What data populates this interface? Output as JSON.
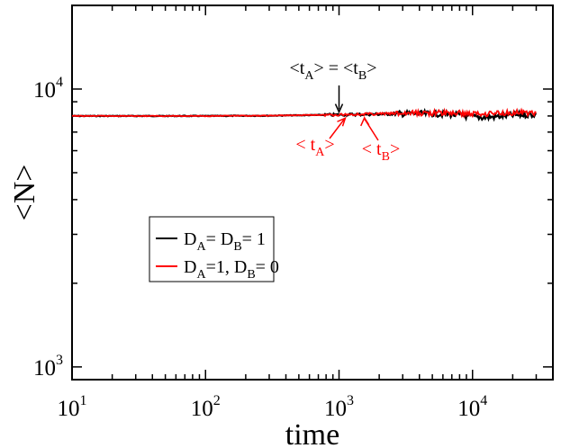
{
  "chart_data": {
    "type": "line",
    "xlabel": "time",
    "ylabel": "<N>",
    "x_scale": "log",
    "y_scale": "log",
    "xlim": [
      10,
      40000
    ],
    "ylim": [
      900,
      20000
    ],
    "x_ticks": [
      {
        "value": 10,
        "base": "10",
        "exp": "1"
      },
      {
        "value": 100,
        "base": "10",
        "exp": "2"
      },
      {
        "value": 1000,
        "base": "10",
        "exp": "3"
      },
      {
        "value": 10000,
        "base": "10",
        "exp": "4"
      }
    ],
    "y_ticks": [
      {
        "value": 1000,
        "base": "10",
        "exp": "3"
      },
      {
        "value": 10000,
        "base": "10",
        "exp": "4"
      }
    ],
    "grid": false,
    "legend_position": "center-left",
    "series": [
      {
        "name": "D_A = D_B = 1",
        "legend_parts": [
          "D",
          "A",
          "= D",
          "B",
          "= 1"
        ],
        "color": "#000000",
        "x": [
          10,
          30,
          100,
          300,
          1000,
          2000,
          3000,
          5000,
          7000,
          10000,
          12000,
          15000,
          20000,
          30000
        ],
        "y": [
          8000,
          8000,
          8000,
          8020,
          8080,
          8120,
          8150,
          8150,
          8100,
          7950,
          7900,
          7950,
          8050,
          8100
        ]
      },
      {
        "name": "D_A = 1, D_B = 0",
        "legend_parts": [
          "D",
          "A",
          "=1, D",
          "B",
          "= 0"
        ],
        "color": "#ff0000",
        "x": [
          10,
          30,
          100,
          300,
          1000,
          2000,
          3000,
          5000,
          7000,
          10000,
          12000,
          15000,
          20000,
          30000
        ],
        "y": [
          8000,
          8000,
          8000,
          8020,
          8090,
          8140,
          8170,
          8200,
          8200,
          8150,
          8150,
          8200,
          8220,
          8200
        ]
      }
    ],
    "annotations": [
      {
        "id": "equal",
        "color": "#000000",
        "parts": [
          "<t",
          "A",
          "> = <t",
          "B",
          ">"
        ],
        "at_x": 1000,
        "at_y": 8080
      },
      {
        "id": "tA",
        "color": "#ff0000",
        "parts": [
          "< t",
          "A",
          ">"
        ],
        "at_x": 1150,
        "at_y": 8100
      },
      {
        "id": "tB",
        "color": "#ff0000",
        "parts": [
          "< t",
          "B",
          ">"
        ],
        "at_x": 1550,
        "at_y": 8120
      }
    ]
  }
}
